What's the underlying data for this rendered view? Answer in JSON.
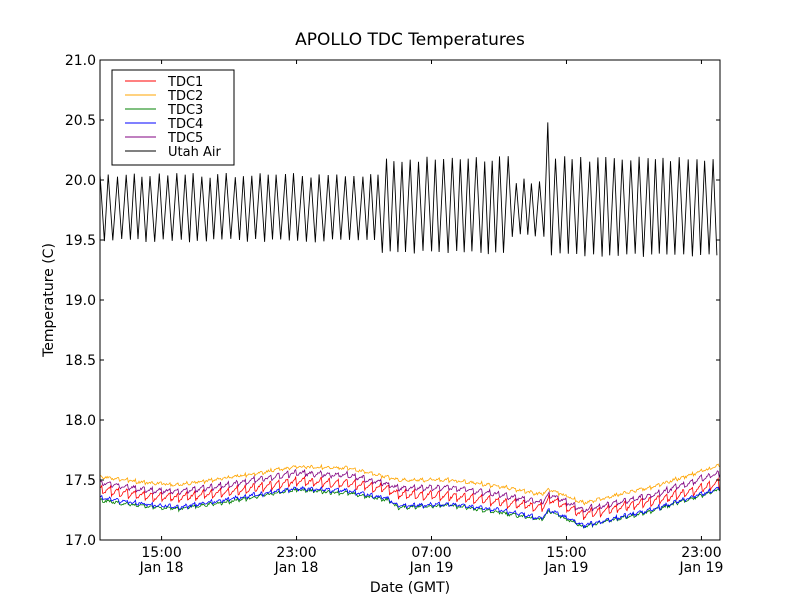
{
  "chart_data": {
    "type": "line",
    "title": "APOLLO TDC Temperatures",
    "xlabel": "Date (GMT)",
    "ylabel": "Temperature (C)",
    "x_units": "hours since Jan 18 00:00 GMT",
    "xlim": [
      11.35,
      48.1
    ],
    "ylim": [
      17.0,
      21.0
    ],
    "grid": false,
    "legend_position": "top-left",
    "yticks": [
      17.0,
      17.5,
      18.0,
      18.5,
      19.0,
      19.5,
      20.0,
      20.5,
      21.0
    ],
    "ytick_labels": [
      "17.0",
      "17.5",
      "18.0",
      "18.5",
      "19.0",
      "19.5",
      "20.0",
      "20.5",
      "21.0"
    ],
    "xticks": [
      15,
      23,
      31,
      39,
      47
    ],
    "xtick_labels": [
      [
        "15:00",
        "Jan 18"
      ],
      [
        "23:00",
        "Jan 18"
      ],
      [
        "07:00",
        "Jan 19"
      ],
      [
        "15:00",
        "Jan 19"
      ],
      [
        "23:00",
        "Jan 19"
      ]
    ],
    "series": [
      {
        "name": "TDC1",
        "color": "#ff0000",
        "x": [
          11.35,
          14,
          16,
          19,
          23,
          26,
          28.5,
          29,
          32,
          35,
          37.5,
          38,
          40,
          44,
          48.1
        ],
        "y": [
          17.42,
          17.37,
          17.35,
          17.4,
          17.49,
          17.47,
          17.42,
          17.38,
          17.37,
          17.32,
          17.27,
          17.34,
          17.21,
          17.32,
          17.47
        ],
        "ripple": 0.04
      },
      {
        "name": "TDC2",
        "color": "#ffa500",
        "x": [
          11.35,
          14,
          16,
          19,
          23,
          26,
          28.5,
          29,
          32,
          35,
          37.5,
          38,
          40,
          44,
          48.1
        ],
        "y": [
          17.53,
          17.48,
          17.46,
          17.52,
          17.61,
          17.6,
          17.52,
          17.5,
          17.5,
          17.45,
          17.38,
          17.42,
          17.31,
          17.44,
          17.62
        ],
        "ripple": 0.012
      },
      {
        "name": "TDC3",
        "color": "#008000",
        "x": [
          11.35,
          14,
          16,
          19,
          23,
          26,
          28.5,
          29,
          32,
          35,
          37.5,
          38,
          40,
          44,
          48.1
        ],
        "y": [
          17.33,
          17.28,
          17.26,
          17.32,
          17.42,
          17.39,
          17.33,
          17.27,
          17.29,
          17.23,
          17.17,
          17.24,
          17.11,
          17.24,
          17.42
        ],
        "ripple": 0.012
      },
      {
        "name": "TDC4",
        "color": "#0000ff",
        "x": [
          11.35,
          14,
          16,
          19,
          23,
          26,
          28.5,
          29,
          32,
          35,
          37.5,
          38,
          40,
          44,
          48.1
        ],
        "y": [
          17.35,
          17.3,
          17.27,
          17.34,
          17.43,
          17.41,
          17.34,
          17.28,
          17.3,
          17.25,
          17.18,
          17.25,
          17.12,
          17.25,
          17.43
        ],
        "ripple": 0.015
      },
      {
        "name": "TDC5",
        "color": "#800080",
        "x": [
          11.35,
          14,
          16,
          19,
          23,
          26,
          28.5,
          29,
          32,
          35,
          37.5,
          38,
          40,
          44,
          48.1
        ],
        "y": [
          17.48,
          17.42,
          17.4,
          17.46,
          17.56,
          17.54,
          17.46,
          17.43,
          17.44,
          17.38,
          17.31,
          17.38,
          17.25,
          17.37,
          17.56
        ],
        "ripple": 0.025
      },
      {
        "name": "Utah Air",
        "color": "#000000",
        "period_hours": 0.49,
        "segments": [
          {
            "from": 11.35,
            "to": 27.9,
            "low": 19.48,
            "high": 20.06
          },
          {
            "from": 27.9,
            "to": 35.7,
            "low": 19.38,
            "high": 20.2
          },
          {
            "from": 35.7,
            "to": 37.7,
            "low": 19.52,
            "high": 20.02
          },
          {
            "from": 37.7,
            "to": 48.1,
            "low": 19.36,
            "high": 20.2
          }
        ],
        "spikes": [
          {
            "x": 37.75,
            "y": 20.48
          }
        ]
      }
    ]
  }
}
